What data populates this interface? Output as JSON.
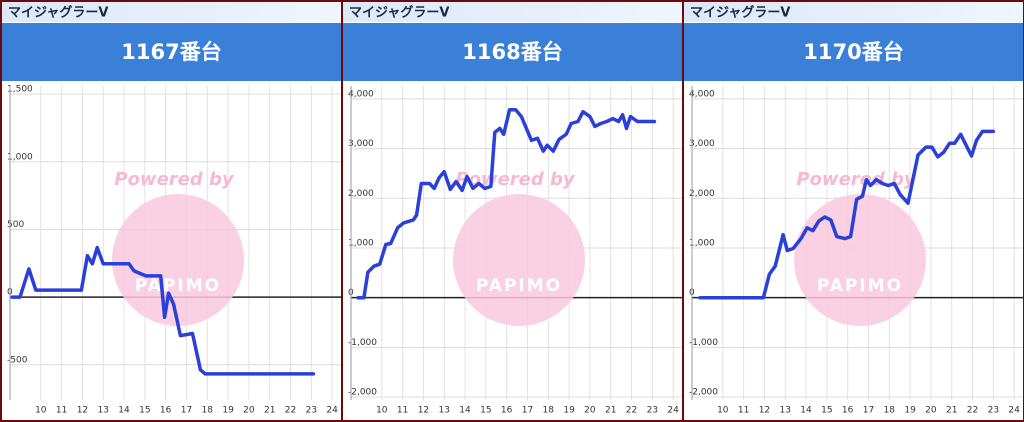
{
  "chart_data": [
    {
      "type": "line",
      "subtitle": "マイジャグラーV",
      "title": "1167番台",
      "watermark": "Powered by",
      "logo": "PAPIMO",
      "x": [
        8.62,
        9.0,
        9.43,
        9.76,
        11.95,
        12.24,
        12.48,
        12.71,
        13.0,
        14.24,
        14.48,
        15.05,
        15.76,
        15.95,
        16.14,
        16.38,
        16.71,
        17.29,
        17.67,
        17.9,
        23.1
      ],
      "series": [
        {
          "color": "#2b3fd9",
          "values": [
            0,
            0,
            209,
            52,
            52,
            306,
            246,
            366,
            246,
            246,
            194,
            157,
            157,
            -149,
            30,
            -52,
            -284,
            -269,
            -537,
            -567,
            -567
          ]
        }
      ],
      "xlim": [
        8.52,
        24.33
      ],
      "xticks": [
        10,
        11,
        12,
        13,
        14,
        15,
        16,
        17,
        18,
        19,
        20,
        21,
        22,
        23,
        24
      ],
      "ylim": [
        -760,
        1560
      ],
      "yticks": [
        -500,
        0,
        500,
        {
          "value": 1000,
          "label": "1,000"
        },
        {
          "value": 1500,
          "label": "1,500"
        }
      ],
      "grid": true
    },
    {
      "type": "line",
      "subtitle": "マイジャグラーV",
      "title": "1168番台",
      "watermark": "Powered by",
      "logo": "PAPIMO",
      "x": [
        8.86,
        9.14,
        9.33,
        9.62,
        9.9,
        10.19,
        10.43,
        10.76,
        11.05,
        11.52,
        11.67,
        11.9,
        12.29,
        12.52,
        12.76,
        13.0,
        13.29,
        13.57,
        13.86,
        14.1,
        14.38,
        14.67,
        14.95,
        15.24,
        15.43,
        15.67,
        15.86,
        16.14,
        16.43,
        16.71,
        17.19,
        17.48,
        17.76,
        17.95,
        18.24,
        18.52,
        18.86,
        19.1,
        19.43,
        19.67,
        20.0,
        20.24,
        20.52,
        20.81,
        21.1,
        21.38,
        21.57,
        21.76,
        21.95,
        22.29,
        23.1
      ],
      "series": [
        {
          "color": "#2b3fd9",
          "values": [
            0,
            0,
            515,
            634,
            673,
            1069,
            1089,
            1406,
            1505,
            1564,
            1663,
            2297,
            2297,
            2198,
            2416,
            2535,
            2178,
            2337,
            2158,
            2436,
            2198,
            2297,
            2198,
            2238,
            3327,
            3406,
            3287,
            3782,
            3782,
            3644,
            3168,
            3208,
            2950,
            3069,
            2950,
            3188,
            3287,
            3505,
            3545,
            3743,
            3644,
            3446,
            3505,
            3545,
            3604,
            3545,
            3683,
            3406,
            3644,
            3545,
            3545
          ]
        }
      ],
      "xlim": [
        8.52,
        24.33
      ],
      "xticks": [
        10,
        11,
        12,
        13,
        14,
        15,
        16,
        17,
        18,
        19,
        20,
        21,
        22,
        23,
        24
      ],
      "ylim": [
        -2060,
        4260
      ],
      "yticks": [
        {
          "value": -2000,
          "label": "-2,000"
        },
        {
          "value": -1000,
          "label": "-1,000"
        },
        0,
        {
          "value": 1000,
          "label": "1,000"
        },
        {
          "value": 2000,
          "label": "2,000"
        },
        {
          "value": 3000,
          "label": "3,000"
        },
        {
          "value": 4000,
          "label": "4,000"
        }
      ],
      "grid": true
    },
    {
      "type": "line",
      "subtitle": "マイジャグラーV",
      "title": "1170番台",
      "watermark": "Powered by",
      "logo": "PAPIMO",
      "x": [
        8.9,
        9.57,
        11.95,
        12.24,
        12.52,
        12.9,
        13.1,
        13.38,
        13.76,
        14.05,
        14.33,
        14.62,
        14.9,
        15.19,
        15.48,
        15.86,
        16.14,
        16.43,
        16.71,
        16.9,
        17.1,
        17.38,
        17.67,
        17.95,
        18.24,
        18.52,
        18.9,
        19.38,
        19.76,
        20.05,
        20.33,
        20.62,
        20.9,
        21.14,
        21.43,
        21.67,
        21.95,
        22.19,
        22.48,
        23.0
      ],
      "series": [
        {
          "color": "#2b3fd9",
          "values": [
            0,
            0,
            0,
            475,
            634,
            1267,
            950,
            990,
            1188,
            1406,
            1347,
            1545,
            1624,
            1564,
            1228,
            1188,
            1228,
            1980,
            2040,
            2376,
            2257,
            2376,
            2297,
            2257,
            2297,
            2079,
            1901,
            2871,
            3030,
            3030,
            2832,
            2930,
            3109,
            3109,
            3287,
            3089,
            2851,
            3168,
            3347,
            3347
          ]
        }
      ],
      "xlim": [
        8.52,
        24.33
      ],
      "xticks": [
        10,
        11,
        12,
        13,
        14,
        15,
        16,
        17,
        18,
        19,
        20,
        21,
        22,
        23,
        24
      ],
      "ylim": [
        -2060,
        4260
      ],
      "yticks": [
        {
          "value": -2000,
          "label": "-2,000"
        },
        {
          "value": -1000,
          "label": "-1,000"
        },
        0,
        {
          "value": 1000,
          "label": "1,000"
        },
        {
          "value": 2000,
          "label": "2,000"
        },
        {
          "value": 3000,
          "label": "3,000"
        },
        {
          "value": 4000,
          "label": "4,000"
        }
      ],
      "grid": true
    }
  ]
}
